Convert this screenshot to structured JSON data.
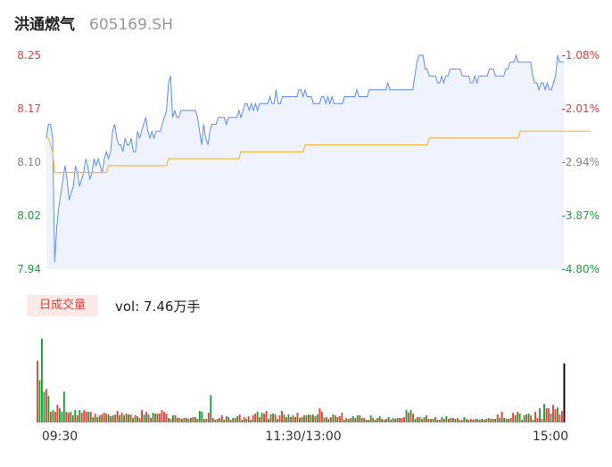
{
  "header": {
    "name": "洪通燃气",
    "code": "605169.SH"
  },
  "volume_panel": {
    "badge": "日成交量",
    "summary": "vol: 7.46万手"
  },
  "colors": {
    "price_line": "#5b8ff9",
    "avg_line": "#f5b942",
    "up": "#e8413a",
    "down": "#1aa33a",
    "area": "#eef3fd"
  },
  "chart_data": [
    {
      "type": "line",
      "title": "",
      "x_ticks": [
        "09:30",
        "11:30/13:00",
        "15:00"
      ],
      "ylim": [
        7.94,
        8.25
      ],
      "y_ticks": [
        "8.25",
        "8.17",
        "8.10",
        "8.02",
        "7.94"
      ],
      "y_pct_ticks": [
        "-1.08%",
        "-2.01%",
        "-2.94%",
        "-3.87%",
        "-4.80%"
      ],
      "grid": false,
      "series": [
        {
          "values": [
            8.13,
            8.15,
            8.15,
            8.13,
            7.95,
            8.0,
            8.03,
            8.05,
            8.07,
            8.09,
            8.07,
            8.04,
            8.05,
            8.06,
            8.09,
            8.08,
            8.06,
            8.07,
            8.08,
            8.1,
            8.09,
            8.07,
            8.08,
            8.1,
            8.09,
            8.1,
            8.09,
            8.08,
            8.1,
            8.11,
            8.1,
            8.11,
            8.14,
            8.15,
            8.13,
            8.12,
            8.12,
            8.11,
            8.13,
            8.12,
            8.12,
            8.13,
            8.11,
            8.11,
            8.14,
            8.13,
            8.14,
            8.15,
            8.16,
            8.14,
            8.13,
            8.14,
            8.13,
            8.14,
            8.14,
            8.14,
            8.15,
            8.16,
            8.17,
            8.21,
            8.22,
            8.16,
            8.17,
            8.16,
            8.16,
            8.17,
            8.17,
            8.17,
            8.17,
            8.17,
            8.17,
            8.17,
            8.17,
            8.16,
            8.14,
            8.12,
            8.15,
            8.13,
            8.12,
            8.14,
            8.15,
            8.15,
            8.15,
            8.16,
            8.16,
            8.16,
            8.16,
            8.15,
            8.16,
            8.16,
            8.16,
            8.16,
            8.16,
            8.17,
            8.16,
            8.17,
            8.18,
            8.18,
            8.17,
            8.18,
            8.17,
            8.18,
            8.17,
            8.18,
            8.18,
            8.18,
            8.18,
            8.18,
            8.19,
            8.18,
            8.18,
            8.2,
            8.18,
            8.18,
            8.19,
            8.19,
            8.19,
            8.19,
            8.19,
            8.19,
            8.19,
            8.19,
            8.2,
            8.2,
            8.19,
            8.2,
            8.19,
            8.19,
            8.19,
            8.18,
            8.18,
            8.18,
            8.18,
            8.19,
            8.19,
            8.18,
            8.19,
            8.18,
            8.19,
            8.18,
            8.18,
            8.18,
            8.18,
            8.18,
            8.19,
            8.19,
            8.19,
            8.19,
            8.19,
            8.19,
            8.2,
            8.19,
            8.19,
            8.19,
            8.19,
            8.19,
            8.2,
            8.2,
            8.2,
            8.2,
            8.2,
            8.2,
            8.2,
            8.2,
            8.2,
            8.21,
            8.2,
            8.2,
            8.2,
            8.2,
            8.2,
            8.2,
            8.2,
            8.2,
            8.2,
            8.2,
            8.2,
            8.2,
            8.22,
            8.24,
            8.25,
            8.25,
            8.25,
            8.23,
            8.23,
            8.22,
            8.22,
            8.22,
            8.22,
            8.21,
            8.21,
            8.22,
            8.21,
            8.22,
            8.22,
            8.23,
            8.23,
            8.23,
            8.23,
            8.23,
            8.23,
            8.22,
            8.22,
            8.22,
            8.22,
            8.21,
            8.21,
            8.22,
            8.21,
            8.22,
            8.22,
            8.22,
            8.22,
            8.22,
            8.23,
            8.23,
            8.23,
            8.22,
            8.22,
            8.22,
            8.22,
            8.22,
            8.23,
            8.23,
            8.24,
            8.24,
            8.24,
            8.25,
            8.24,
            8.24,
            8.24,
            8.24,
            8.24,
            8.24,
            8.24,
            8.22,
            8.21,
            8.21,
            8.2,
            8.21,
            8.21,
            8.2,
            8.21,
            8.2,
            8.2,
            8.21,
            8.22,
            8.25,
            8.24,
            8.24,
            8.24
          ]
        },
        {
          "values": [
            8.13,
            8.13,
            8.12,
            8.11,
            8.08,
            8.08,
            8.08,
            8.08,
            8.08,
            8.08,
            8.08,
            8.08,
            8.08,
            8.08,
            8.08,
            8.08,
            8.08,
            8.08,
            8.08,
            8.08,
            8.08,
            8.08,
            8.08,
            8.08,
            8.08,
            8.08,
            8.08,
            8.08,
            8.08,
            8.08,
            8.09,
            8.09,
            8.09,
            8.09,
            8.09,
            8.09,
            8.09,
            8.09,
            8.09,
            8.09,
            8.09,
            8.09,
            8.09,
            8.09,
            8.09,
            8.09,
            8.09,
            8.09,
            8.09,
            8.09,
            8.09,
            8.09,
            8.09,
            8.09,
            8.09,
            8.09,
            8.09,
            8.09,
            8.09,
            8.1,
            8.1,
            8.1,
            8.1,
            8.1,
            8.1,
            8.1,
            8.1,
            8.1,
            8.1,
            8.1,
            8.1,
            8.1,
            8.1,
            8.1,
            8.1,
            8.1,
            8.1,
            8.1,
            8.1,
            8.1,
            8.1,
            8.1,
            8.1,
            8.1,
            8.1,
            8.1,
            8.1,
            8.1,
            8.1,
            8.1,
            8.1,
            8.1,
            8.1,
            8.1,
            8.11,
            8.11,
            8.11,
            8.11,
            8.11,
            8.11,
            8.11,
            8.11,
            8.11,
            8.11,
            8.11,
            8.11,
            8.11,
            8.11,
            8.11,
            8.11,
            8.11,
            8.11,
            8.11,
            8.11,
            8.11,
            8.11,
            8.11,
            8.11,
            8.11,
            8.11,
            8.11,
            8.11,
            8.11,
            8.11,
            8.11,
            8.12,
            8.12,
            8.12,
            8.12,
            8.12,
            8.12,
            8.12,
            8.12,
            8.12,
            8.12,
            8.12,
            8.12,
            8.12,
            8.12,
            8.12,
            8.12,
            8.12,
            8.12,
            8.12,
            8.12,
            8.12,
            8.12,
            8.12,
            8.12,
            8.12,
            8.12,
            8.12,
            8.12,
            8.12,
            8.12,
            8.12,
            8.12,
            8.12,
            8.12,
            8.12,
            8.12,
            8.12,
            8.12,
            8.12,
            8.12,
            8.12,
            8.12,
            8.12,
            8.12,
            8.12,
            8.12,
            8.12,
            8.12,
            8.12,
            8.12,
            8.12,
            8.12,
            8.12,
            8.12,
            8.12,
            8.12,
            8.12,
            8.12,
            8.12,
            8.12,
            8.13,
            8.13,
            8.13,
            8.13,
            8.13,
            8.13,
            8.13,
            8.13,
            8.13,
            8.13,
            8.13,
            8.13,
            8.13,
            8.13,
            8.13,
            8.13,
            8.13,
            8.13,
            8.13,
            8.13,
            8.13,
            8.13,
            8.13,
            8.13,
            8.13,
            8.13,
            8.13,
            8.13,
            8.13,
            8.13,
            8.13,
            8.13,
            8.13,
            8.13,
            8.13,
            8.13,
            8.13,
            8.13,
            8.13,
            8.13,
            8.13,
            8.13,
            8.13,
            8.13,
            8.14,
            8.14,
            8.14,
            8.14,
            8.14,
            8.14,
            8.14,
            8.14,
            8.14,
            8.14,
            8.14,
            8.14,
            8.14,
            8.14,
            8.14,
            8.14,
            8.14,
            8.14,
            8.14,
            8.14,
            8.14,
            8.14,
            8.14,
            8.14,
            8.14,
            8.14,
            8.14,
            8.14,
            8.14,
            8.14,
            8.14,
            8.14,
            8.14,
            8.14,
            8.14
          ]
        }
      ]
    },
    {
      "type": "bar",
      "title": "",
      "x_ticks": [
        "09:30",
        "11:30/13:00",
        "15:00"
      ],
      "series": [
        {
          "values": [
            70,
            48,
            95,
            35,
            38,
            30,
            12,
            14,
            12,
            20,
            16,
            12,
            35,
            12,
            11,
            12,
            8,
            14,
            8,
            14,
            11,
            14,
            12,
            12,
            12,
            6,
            10,
            6,
            8,
            9,
            11,
            10,
            9,
            7,
            8,
            9,
            13,
            8,
            11,
            8,
            10,
            9,
            9,
            5,
            8,
            7,
            5,
            14,
            9,
            12,
            9,
            5,
            11,
            10,
            10,
            10,
            14,
            12,
            10,
            5,
            4,
            8,
            8,
            5,
            5,
            4,
            5,
            5,
            4,
            5,
            6,
            6,
            4,
            13,
            12,
            4,
            4,
            11,
            31,
            5,
            3,
            4,
            5,
            8,
            3,
            7,
            6,
            3,
            5,
            5,
            7,
            9,
            3,
            6,
            4,
            7,
            3,
            8,
            10,
            12,
            6,
            11,
            10,
            13,
            4,
            9,
            10,
            9,
            4,
            8,
            13,
            9,
            6,
            9,
            6,
            8,
            6,
            11,
            5,
            6,
            8,
            8,
            9,
            8,
            9,
            7,
            9,
            16,
            12,
            5,
            6,
            4,
            6,
            9,
            8,
            6,
            7,
            11,
            3,
            5,
            4,
            5,
            7,
            5,
            8,
            8,
            5,
            5,
            3,
            3,
            8,
            5,
            3,
            5,
            7,
            4,
            3,
            4,
            6,
            3,
            5,
            4,
            5,
            5,
            5,
            6,
            14,
            11,
            14,
            10,
            4,
            6,
            6,
            4,
            6,
            8,
            4,
            4,
            4,
            6,
            3,
            3,
            6,
            4,
            7,
            4,
            5,
            5,
            4,
            5,
            3,
            3,
            6,
            4,
            3,
            4,
            3,
            4,
            4,
            3,
            4,
            3,
            4,
            5,
            4,
            4,
            4,
            9,
            5,
            12,
            5,
            4,
            4,
            5,
            11,
            8,
            12,
            10,
            3,
            8,
            9,
            10,
            8,
            3,
            12,
            5,
            16,
            4,
            21,
            16,
            16,
            10,
            20,
            15,
            17,
            9,
            13,
            67
          ],
          "colors": [
            "#e8413a",
            "#1aa33a",
            "#1aa33a",
            "#1aa33a",
            "#e8413a",
            "#1aa33a",
            "#e8413a",
            "#1aa33a",
            "#e8413a",
            "#e8413a",
            "#1aa33a",
            "#1aa33a",
            "#1aa33a",
            "#e8413a",
            "#e8413a",
            "#1aa33a",
            "#e8413a",
            "#1aa33a",
            "#e8413a",
            "#1aa33a",
            "#e8413a",
            "#e8413a",
            "#e8413a",
            "#1aa33a",
            "#e8413a",
            "#1aa33a",
            "#e8413a",
            "#1aa33a",
            "#e8413a",
            "#1aa33a",
            "#e8413a",
            "#e8413a",
            "#1aa33a",
            "#e8413a",
            "#1aa33a",
            "#e8413a",
            "#e8413a",
            "#1aa33a",
            "#e8413a",
            "#1aa33a",
            "#e8413a",
            "#1aa33a",
            "#e8413a",
            "#1aa33a",
            "#e8413a",
            "#1aa33a",
            "#e8413a",
            "#e8413a",
            "#1aa33a",
            "#e8413a",
            "#1aa33a",
            "#e8413a",
            "#1aa33a",
            "#e8413a",
            "#1aa33a",
            "#e8413a",
            "#e8413a",
            "#e8413a",
            "#e8413a",
            "#1aa33a",
            "#e8413a",
            "#1aa33a",
            "#e8413a",
            "#1aa33a",
            "#e8413a",
            "#1aa33a",
            "#e8413a",
            "#1aa33a",
            "#e8413a",
            "#1aa33a",
            "#e8413a",
            "#1aa33a",
            "#e8413a",
            "#1aa33a",
            "#1aa33a",
            "#e8413a",
            "#1aa33a",
            "#e8413a",
            "#1aa33a",
            "#e8413a",
            "#1aa33a",
            "#e8413a",
            "#1aa33a",
            "#e8413a",
            "#1aa33a",
            "#e8413a",
            "#1aa33a",
            "#e8413a",
            "#1aa33a",
            "#e8413a",
            "#1aa33a",
            "#e8413a",
            "#1aa33a",
            "#e8413a",
            "#1aa33a",
            "#e8413a",
            "#1aa33a",
            "#e8413a",
            "#e8413a",
            "#1aa33a",
            "#e8413a",
            "#1aa33a",
            "#e8413a",
            "#e8413a",
            "#1aa33a",
            "#e8413a",
            "#1aa33a",
            "#e8413a",
            "#1aa33a",
            "#e8413a",
            "#e8413a",
            "#1aa33a",
            "#e8413a",
            "#1aa33a",
            "#e8413a",
            "#1aa33a",
            "#e8413a",
            "#e8413a",
            "#1aa33a",
            "#e8413a",
            "#1aa33a",
            "#e8413a",
            "#1aa33a",
            "#e8413a",
            "#1aa33a",
            "#e8413a",
            "#1aa33a",
            "#e8413a",
            "#e8413a",
            "#1aa33a",
            "#e8413a",
            "#1aa33a",
            "#e8413a",
            "#1aa33a",
            "#e8413a",
            "#1aa33a",
            "#e8413a",
            "#e8413a",
            "#1aa33a",
            "#e8413a",
            "#1aa33a",
            "#e8413a",
            "#1aa33a",
            "#e8413a",
            "#1aa33a",
            "#e8413a",
            "#1aa33a",
            "#e8413a",
            "#1aa33a",
            "#e8413a",
            "#1aa33a",
            "#e8413a",
            "#1aa33a",
            "#e8413a",
            "#1aa33a",
            "#e8413a",
            "#1aa33a",
            "#e8413a",
            "#1aa33a",
            "#e8413a",
            "#1aa33a",
            "#e8413a",
            "#1aa33a",
            "#e8413a",
            "#e8413a",
            "#e8413a",
            "#1aa33a",
            "#e8413a",
            "#1aa33a",
            "#e8413a",
            "#1aa33a",
            "#e8413a",
            "#1aa33a",
            "#e8413a",
            "#1aa33a",
            "#e8413a",
            "#1aa33a",
            "#e8413a",
            "#1aa33a",
            "#e8413a",
            "#1aa33a",
            "#e8413a",
            "#1aa33a",
            "#e8413a",
            "#1aa33a",
            "#e8413a",
            "#1aa33a",
            "#e8413a",
            "#1aa33a",
            "#e8413a",
            "#1aa33a",
            "#e8413a",
            "#1aa33a",
            "#e8413a",
            "#1aa33a",
            "#e8413a",
            "#1aa33a",
            "#e8413a",
            "#1aa33a",
            "#e8413a",
            "#1aa33a",
            "#e8413a",
            "#1aa33a",
            "#e8413a",
            "#1aa33a",
            "#e8413a",
            "#1aa33a",
            "#e8413a",
            "#1aa33a",
            "#e8413a",
            "#1aa33a",
            "#e8413a",
            "#1aa33a",
            "#e8413a",
            "#e8413a",
            "#1aa33a",
            "#e8413a",
            "#1aa33a",
            "#e8413a",
            "#1aa33a",
            "#e8413a",
            "#1aa33a",
            "#e8413a",
            "#1aa33a",
            "#e8413a",
            "#e8413a",
            "#1aa33a",
            "#e8413a",
            "#1aa33a",
            "#e8413a",
            "#e8413a",
            "#1aa33a",
            "#e8413a",
            "#e8413a",
            "#1aa33a",
            "#e8413a",
            "#e8413a"
          ]
        }
      ]
    }
  ]
}
